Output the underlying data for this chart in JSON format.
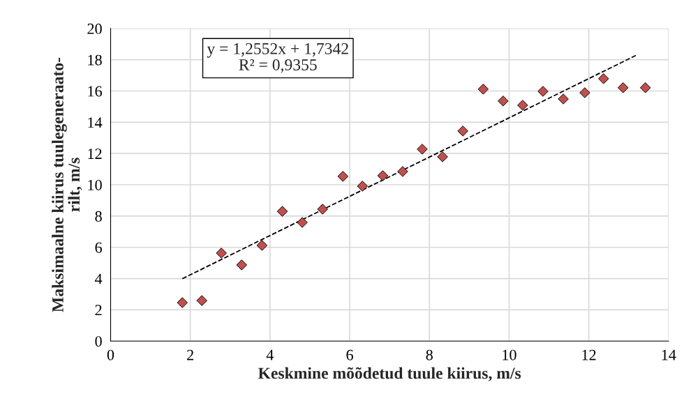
{
  "chart_data": {
    "type": "scatter",
    "xlabel": "Keskmine mõõdetud tuule kiirus, m/s",
    "ylabel": "Maksimaalne kiirus tuulegeneraato-\nrilt, m/s",
    "annotations": [
      "y = 1,2552x + 1,7342\nR² = 0,9355"
    ],
    "series": [
      {
        "color": "#c0504d",
        "marker": "diamond",
        "x": [
          1.8,
          2.29,
          2.78,
          3.29,
          3.8,
          4.31,
          4.81,
          5.32,
          5.83,
          6.32,
          6.83,
          7.33,
          7.82,
          8.33,
          8.84,
          9.35,
          9.85,
          10.34,
          10.85,
          11.36,
          11.9,
          12.37,
          12.86,
          13.42
        ],
        "values": [
          2.46,
          2.59,
          5.63,
          4.87,
          6.12,
          8.3,
          7.59,
          8.44,
          10.54,
          9.91,
          10.58,
          10.85,
          12.28,
          11.79,
          13.44,
          16.12,
          15.36,
          15.09,
          15.98,
          15.49,
          15.89,
          16.79,
          16.21,
          16.21
        ]
      },
      {
        "type": "line",
        "color": "#000000",
        "line_style": "dashed",
        "marker": "none",
        "x": [
          1.8,
          13.2
        ],
        "values": [
          3.99,
          18.3
        ]
      }
    ],
    "xlim": [
      0,
      14
    ],
    "xticks": [
      0,
      2,
      4,
      6,
      8,
      10,
      12,
      14
    ],
    "ylim": [
      0,
      20
    ],
    "yticks": [
      0,
      2,
      4,
      6,
      8,
      10,
      12,
      14,
      16,
      18,
      20
    ],
    "grid": true
  }
}
